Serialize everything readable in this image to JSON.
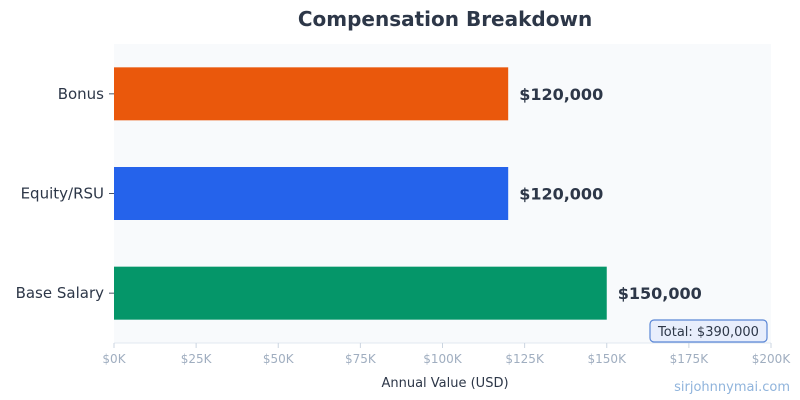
{
  "chart_data": {
    "type": "bar",
    "orientation": "horizontal",
    "title": "Compensation Breakdown",
    "xlabel": "Annual Value (USD)",
    "ylabel": "",
    "categories": [
      "Bonus",
      "Equity/RSU",
      "Base Salary"
    ],
    "values": [
      120000,
      120000,
      150000
    ],
    "value_labels": [
      "$120,000",
      "$120,000",
      "$150,000"
    ],
    "colors": [
      "#ea580c",
      "#2563eb",
      "#059669"
    ],
    "xlim": [
      0,
      200000
    ],
    "x_ticks": [
      0,
      25000,
      50000,
      75000,
      100000,
      125000,
      150000,
      175000,
      200000
    ],
    "x_tick_labels": [
      "$0K",
      "$25K",
      "$50K",
      "$75K",
      "$100K",
      "$125K",
      "$150K",
      "$175K",
      "$200K"
    ],
    "grid": false,
    "annotation": "Total: $390,000",
    "plot_background": "#f8fafc"
  },
  "watermark": "sirjohnnymai.com"
}
